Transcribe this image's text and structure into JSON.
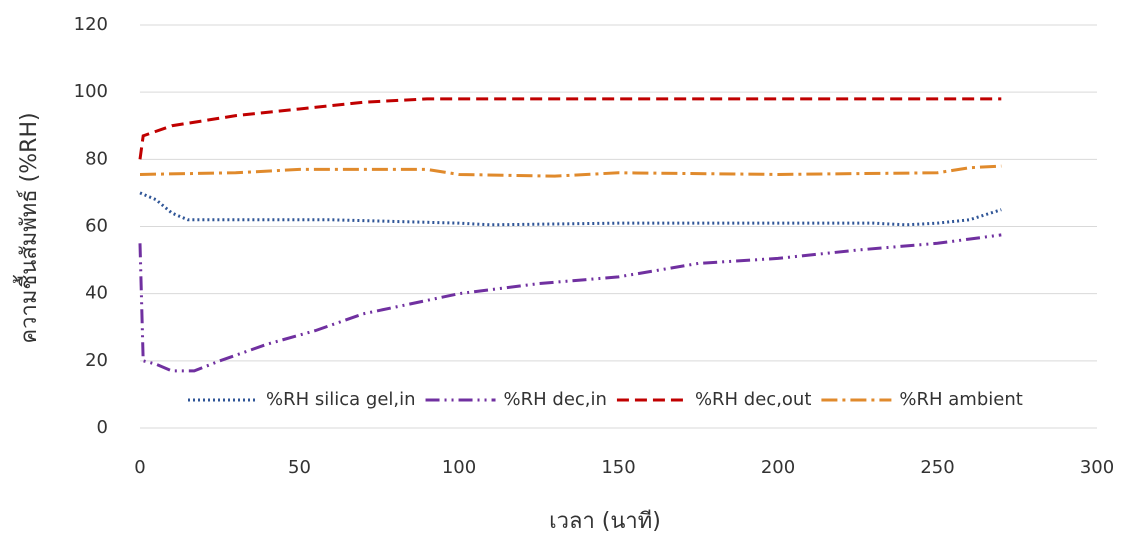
{
  "chart_data": {
    "type": "line",
    "x_label": "เวลา (นาที)",
    "y_label": "ความชื้นสัมพัทธ์ (%RH)",
    "xlim": [
      0,
      300
    ],
    "xticks": [
      0,
      50,
      100,
      150,
      200,
      250,
      300
    ],
    "ylim": [
      0,
      120
    ],
    "yticks": [
      0,
      20,
      40,
      60,
      80,
      100,
      120
    ],
    "grid": true,
    "legend": "bottom",
    "series": [
      {
        "name": "%RH silica gel,in",
        "color": "#2f5597",
        "dash": "2,3",
        "x": [
          0,
          5,
          10,
          15,
          20,
          40,
          60,
          80,
          100,
          110,
          150,
          200,
          230,
          240,
          250,
          260,
          270
        ],
        "values": [
          70,
          68,
          64,
          62,
          62,
          62,
          62,
          61.5,
          61,
          60.5,
          61,
          61,
          61,
          60.5,
          61,
          62,
          65
        ]
      },
      {
        "name": "%RH dec,in",
        "color": "#7030a0",
        "dash": "14,5,2,5,2,5",
        "x": [
          0,
          1,
          5,
          10,
          17,
          25,
          40,
          55,
          70,
          85,
          100,
          125,
          150,
          175,
          200,
          225,
          250,
          270
        ],
        "values": [
          55,
          20,
          19,
          17,
          17,
          20,
          25,
          29,
          34,
          37,
          40,
          43,
          45,
          49,
          50.5,
          53,
          55,
          57.5
        ]
      },
      {
        "name": "%RH dec,out",
        "color": "#c00000",
        "dash": "12,6",
        "x": [
          0,
          1,
          10,
          30,
          50,
          70,
          90,
          120,
          200,
          270
        ],
        "values": [
          80,
          87,
          90,
          93,
          95,
          97,
          98,
          98,
          98,
          98
        ]
      },
      {
        "name": "%RH ambient",
        "color": "#e08a2c",
        "dash": "16,5,3,5",
        "x": [
          0,
          30,
          50,
          90,
          100,
          130,
          150,
          200,
          250,
          260,
          270
        ],
        "values": [
          75.5,
          76,
          77,
          77,
          75.5,
          75,
          76,
          75.5,
          76,
          77.5,
          78
        ]
      }
    ]
  }
}
